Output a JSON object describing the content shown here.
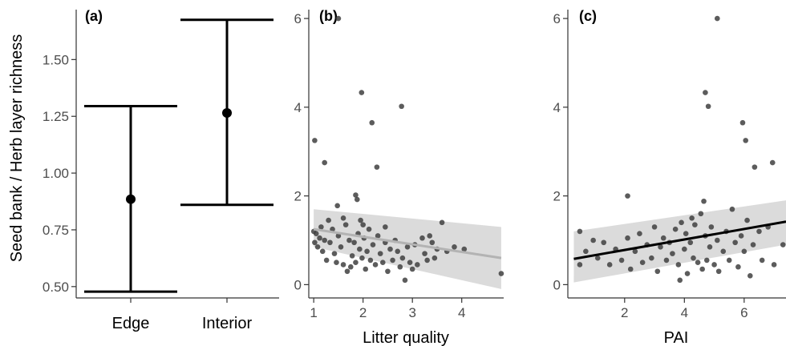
{
  "y_axis_label": "Seed bank / Herb layer richness",
  "colors": {
    "axis": "#333333",
    "point": "#404040",
    "grey_line": "#b3b3b3",
    "black_line": "#000000",
    "ribbon": "#d9d9d9"
  },
  "chart_data": [
    {
      "panel": "(a)",
      "type": "errorbar",
      "categories": [
        "Edge",
        "Interior"
      ],
      "mean": [
        0.885,
        1.265
      ],
      "lower": [
        0.478,
        0.86
      ],
      "upper": [
        1.295,
        1.675
      ],
      "ylabel": "Seed bank / Herb layer richness",
      "ylim": [
        0.45,
        1.72
      ],
      "yticks": [
        0.5,
        0.75,
        1.0,
        1.25,
        1.5
      ],
      "ytick_labels": [
        "0.50",
        "0.75",
        "1.00",
        "1.25",
        "1.50"
      ],
      "grid": false
    },
    {
      "panel": "(b)",
      "type": "scatter",
      "xlabel": "Litter quality",
      "xlim": [
        0.9,
        4.85
      ],
      "ylim": [
        -0.3,
        6.2
      ],
      "xticks": [
        1,
        2,
        3,
        4
      ],
      "yticks": [
        0,
        2,
        4,
        6
      ],
      "points": [
        [
          1.02,
          3.25
        ],
        [
          1.22,
          2.75
        ],
        [
          1.5,
          6.0
        ],
        [
          1.48,
          1.78
        ],
        [
          1.85,
          2.02
        ],
        [
          1.88,
          1.92
        ],
        [
          1.97,
          4.33
        ],
        [
          2.18,
          3.65
        ],
        [
          2.28,
          2.65
        ],
        [
          2.78,
          4.02
        ],
        [
          1.0,
          1.2
        ],
        [
          1.02,
          0.95
        ],
        [
          1.05,
          1.15
        ],
        [
          1.08,
          0.85
        ],
        [
          1.12,
          1.05
        ],
        [
          1.15,
          1.3
        ],
        [
          1.18,
          0.75
        ],
        [
          1.22,
          1.0
        ],
        [
          1.26,
          0.55
        ],
        [
          1.3,
          1.45
        ],
        [
          1.33,
          0.95
        ],
        [
          1.38,
          1.25
        ],
        [
          1.42,
          0.7
        ],
        [
          1.46,
          0.5
        ],
        [
          1.5,
          1.1
        ],
        [
          1.55,
          0.85
        ],
        [
          1.6,
          0.45
        ],
        [
          1.65,
          1.35
        ],
        [
          1.68,
          0.3
        ],
        [
          1.72,
          1.0
        ],
        [
          1.78,
          0.65
        ],
        [
          1.82,
          0.95
        ],
        [
          1.85,
          0.5
        ],
        [
          1.9,
          1.15
        ],
        [
          1.93,
          0.8
        ],
        [
          1.95,
          1.45
        ],
        [
          1.98,
          0.6
        ],
        [
          2.02,
          1.05
        ],
        [
          2.05,
          0.35
        ],
        [
          2.08,
          0.75
        ],
        [
          2.12,
          1.25
        ],
        [
          2.15,
          0.55
        ],
        [
          2.2,
          0.9
        ],
        [
          2.25,
          0.45
        ],
        [
          2.3,
          1.1
        ],
        [
          2.35,
          0.7
        ],
        [
          2.4,
          0.5
        ],
        [
          2.45,
          0.95
        ],
        [
          2.5,
          0.3
        ],
        [
          2.55,
          0.8
        ],
        [
          2.6,
          0.55
        ],
        [
          2.65,
          1.0
        ],
        [
          2.7,
          0.75
        ],
        [
          2.75,
          0.4
        ],
        [
          2.8,
          0.6
        ],
        [
          2.85,
          0.1
        ],
        [
          2.9,
          0.85
        ],
        [
          2.95,
          0.5
        ],
        [
          3.0,
          0.35
        ],
        [
          3.05,
          0.9
        ],
        [
          3.1,
          0.45
        ],
        [
          3.2,
          1.05
        ],
        [
          3.25,
          0.7
        ],
        [
          3.3,
          0.55
        ],
        [
          3.35,
          1.1
        ],
        [
          3.4,
          0.95
        ],
        [
          3.45,
          0.6
        ],
        [
          3.5,
          0.8
        ],
        [
          3.6,
          1.4
        ],
        [
          3.7,
          0.75
        ],
        [
          3.85,
          0.85
        ],
        [
          4.05,
          0.8
        ],
        [
          4.8,
          0.25
        ],
        [
          1.6,
          1.5
        ],
        [
          2.0,
          1.35
        ],
        [
          1.75,
          0.4
        ],
        [
          2.45,
          1.3
        ]
      ],
      "trend": {
        "x": [
          1.0,
          4.8
        ],
        "y": [
          1.25,
          0.6
        ]
      },
      "band": {
        "x": [
          1.0,
          4.8
        ],
        "upper": [
          1.7,
          1.3
        ],
        "lower": [
          0.85,
          -0.1
        ]
      },
      "line_color": "#b3b3b3",
      "grid": false
    },
    {
      "panel": "(c)",
      "type": "scatter",
      "xlabel": "PAI",
      "xlim": [
        0.1,
        7.4
      ],
      "ylim": [
        -0.3,
        6.2
      ],
      "xticks": [
        2,
        4,
        6
      ],
      "yticks": [
        0,
        2,
        4,
        6
      ],
      "points": [
        [
          5.1,
          6.0
        ],
        [
          4.7,
          4.33
        ],
        [
          4.8,
          4.02
        ],
        [
          5.95,
          3.65
        ],
        [
          6.05,
          3.25
        ],
        [
          6.35,
          2.65
        ],
        [
          2.1,
          2.0
        ],
        [
          4.65,
          1.88
        ],
        [
          6.95,
          2.75
        ],
        [
          0.5,
          1.2
        ],
        [
          0.5,
          0.45
        ],
        [
          0.7,
          0.75
        ],
        [
          0.95,
          1.0
        ],
        [
          1.1,
          0.6
        ],
        [
          1.3,
          0.95
        ],
        [
          1.5,
          0.45
        ],
        [
          1.7,
          0.8
        ],
        [
          1.9,
          0.55
        ],
        [
          2.1,
          1.05
        ],
        [
          2.2,
          0.35
        ],
        [
          2.35,
          0.75
        ],
        [
          2.5,
          1.15
        ],
        [
          2.6,
          0.5
        ],
        [
          2.75,
          0.9
        ],
        [
          2.9,
          0.6
        ],
        [
          3.0,
          1.3
        ],
        [
          3.1,
          0.3
        ],
        [
          3.2,
          0.85
        ],
        [
          3.3,
          1.05
        ],
        [
          3.4,
          0.55
        ],
        [
          3.5,
          0.95
        ],
        [
          3.6,
          0.7
        ],
        [
          3.7,
          1.25
        ],
        [
          3.8,
          0.45
        ],
        [
          3.9,
          1.4
        ],
        [
          4.0,
          0.8
        ],
        [
          4.05,
          1.15
        ],
        [
          4.1,
          0.25
        ],
        [
          4.2,
          0.95
        ],
        [
          4.3,
          0.6
        ],
        [
          4.35,
          1.35
        ],
        [
          4.45,
          0.5
        ],
        [
          4.55,
          1.6
        ],
        [
          4.6,
          0.35
        ],
        [
          4.7,
          1.1
        ],
        [
          4.75,
          0.55
        ],
        [
          4.85,
          0.85
        ],
        [
          4.9,
          1.3
        ],
        [
          5.0,
          0.45
        ],
        [
          5.1,
          1.0
        ],
        [
          5.15,
          0.3
        ],
        [
          5.3,
          0.75
        ],
        [
          5.4,
          1.2
        ],
        [
          5.5,
          0.55
        ],
        [
          5.6,
          1.7
        ],
        [
          5.7,
          0.95
        ],
        [
          5.8,
          0.4
        ],
        [
          5.9,
          1.1
        ],
        [
          6.0,
          0.75
        ],
        [
          6.1,
          1.45
        ],
        [
          6.2,
          0.2
        ],
        [
          6.3,
          0.9
        ],
        [
          6.5,
          1.2
        ],
        [
          6.6,
          0.55
        ],
        [
          6.8,
          1.3
        ],
        [
          7.0,
          0.45
        ],
        [
          7.3,
          0.9
        ],
        [
          3.85,
          0.1
        ],
        [
          4.25,
          1.5
        ]
      ],
      "trend": {
        "x": [
          0.3,
          7.4
        ],
        "y": [
          0.58,
          1.42
        ]
      },
      "band": {
        "x": [
          0.3,
          7.4
        ],
        "upper": [
          1.2,
          1.9
        ],
        "lower": [
          0.05,
          0.9
        ]
      },
      "line_color": "#000000",
      "grid": false
    }
  ]
}
